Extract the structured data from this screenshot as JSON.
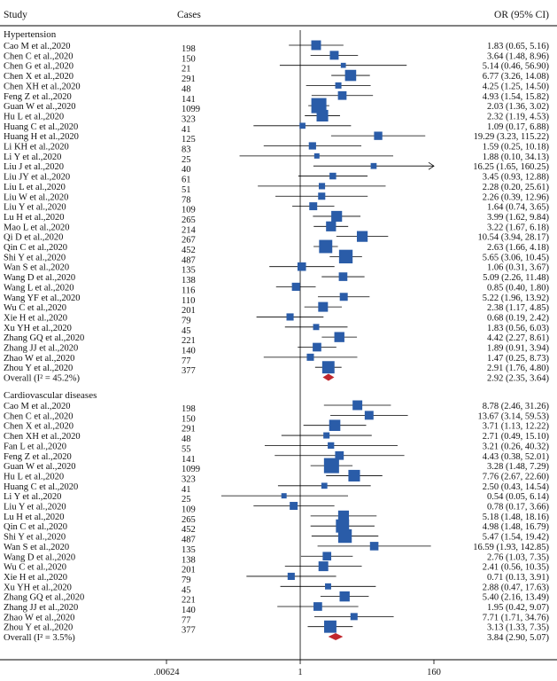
{
  "chart_data": {
    "type": "forest",
    "headers": {
      "study": "Study",
      "cases": "Cases",
      "or": "OR (95% CI)"
    },
    "axis": {
      "scale": "log",
      "range": [
        0.00624,
        160
      ],
      "null_value": 1,
      "ticks": [
        0.00624,
        1,
        160
      ],
      "tick_labels": [
        ".00624",
        "1",
        "160"
      ]
    },
    "groups": [
      {
        "name": "Hypertension",
        "studies": [
          {
            "label": "Cao M et al.,2020",
            "cases": "198",
            "or": 1.83,
            "lo": 0.65,
            "hi": 5.16,
            "ci": "1.83 (0.65, 5.16)"
          },
          {
            "label": "Chen C et al.,2020",
            "cases": "150",
            "or": 3.64,
            "lo": 1.48,
            "hi": 8.96,
            "ci": "3.64 (1.48, 8.96)"
          },
          {
            "label": "Chen G et al.,2020",
            "cases": "21",
            "or": 5.14,
            "lo": 0.46,
            "hi": 56.9,
            "ci": "5.14 (0.46, 56.90)"
          },
          {
            "label": "Chen X et al.,2020",
            "cases": "291",
            "or": 6.77,
            "lo": 3.26,
            "hi": 14.08,
            "ci": "6.77 (3.26, 14.08)"
          },
          {
            "label": "Chen XH et al.,2020",
            "cases": "48",
            "or": 4.25,
            "lo": 1.25,
            "hi": 14.5,
            "ci": "4.25 (1.25, 14.50)"
          },
          {
            "label": "Feng Z et al.,2020",
            "cases": "141",
            "or": 4.93,
            "lo": 1.54,
            "hi": 15.82,
            "ci": "4.93 (1.54, 15.82)"
          },
          {
            "label": "Guan W et al.,2020",
            "cases": "1099",
            "or": 2.03,
            "lo": 1.36,
            "hi": 3.02,
            "ci": "2.03 (1.36, 3.02)"
          },
          {
            "label": "Hu L et al.,2020",
            "cases": "323",
            "or": 2.32,
            "lo": 1.19,
            "hi": 4.53,
            "ci": "2.32 (1.19, 4.53)"
          },
          {
            "label": "Huang C et al.,2020",
            "cases": "41",
            "or": 1.09,
            "lo": 0.17,
            "hi": 6.88,
            "ci": "1.09 (0.17, 6.88)"
          },
          {
            "label": "Huang H et al.,2020",
            "cases": "125",
            "or": 19.29,
            "lo": 3.23,
            "hi": 115.22,
            "ci": "19.29 (3.23, 115.22)"
          },
          {
            "label": "Li KH et al.,2020",
            "cases": "83",
            "or": 1.59,
            "lo": 0.25,
            "hi": 10.18,
            "ci": "1.59 (0.25, 10.18)"
          },
          {
            "label": "Li Y et al.,2020",
            "cases": "25",
            "or": 1.88,
            "lo": 0.1,
            "hi": 34.13,
            "ci": "1.88 (0.10, 34.13)"
          },
          {
            "label": "Liu J et al.,2020",
            "cases": "40",
            "or": 16.25,
            "lo": 1.65,
            "hi": 160.25,
            "ci": "16.25 (1.65, 160.25)"
          },
          {
            "label": "Liu JY et al.,2020",
            "cases": "61",
            "or": 3.45,
            "or_note": "",
            "lo": 0.93,
            "hi": 12.88,
            "ci": "3.45 (0.93, 12.88)"
          },
          {
            "label": "Liu L et al.,2020",
            "cases": "51",
            "or": 2.28,
            "lo": 0.2,
            "hi": 25.61,
            "ci": "2.28 (0.20, 25.61)"
          },
          {
            "label": "Liu W et al.,2020",
            "cases": "78",
            "or": 2.26,
            "lo": 0.39,
            "hi": 12.96,
            "ci": "2.26 (0.39, 12.96)"
          },
          {
            "label": "Liu Y et al.,2020",
            "cases": "109",
            "or": 1.64,
            "lo": 0.74,
            "hi": 3.65,
            "ci": "1.64 (0.74, 3.65)"
          },
          {
            "label": "Lu H et al.,2020",
            "cases": "265",
            "or": 3.99,
            "lo": 1.62,
            "hi": 9.84,
            "ci": "3.99 (1.62, 9.84)"
          },
          {
            "label": "Mao L et al.,2020",
            "cases": "214",
            "or": 3.22,
            "lo": 1.67,
            "hi": 6.18,
            "ci": "3.22 (1.67, 6.18)"
          },
          {
            "label": "Qi D et al.,2020",
            "cases": "267",
            "or": 10.54,
            "lo": 3.94,
            "hi": 28.17,
            "ci": "10.54 (3.94, 28.17)"
          },
          {
            "label": "Qin C et al.,2020",
            "cases": "452",
            "or": 2.63,
            "lo": 1.66,
            "hi": 4.18,
            "ci": "2.63 (1.66, 4.18)"
          },
          {
            "label": "Shi Y et al.,2020",
            "cases": "487",
            "or": 5.65,
            "lo": 3.06,
            "hi": 10.45,
            "ci": "5.65 (3.06, 10.45)"
          },
          {
            "label": "Wan S et al.,2020",
            "cases": "135",
            "or": 1.06,
            "lo": 0.31,
            "hi": 3.67,
            "ci": "1.06 (0.31, 3.67)"
          },
          {
            "label": "Wang D et al.,2020",
            "cases": "138",
            "or": 5.09,
            "lo": 2.26,
            "hi": 11.48,
            "ci": "5.09 (2.26, 11.48)"
          },
          {
            "label": "Wang L et al.,2020",
            "cases": "116",
            "or": 0.85,
            "lo": 0.4,
            "hi": 1.8,
            "ci": "0.85 (0.40, 1.80)"
          },
          {
            "label": "Wang YF et al.,2020",
            "cases": "110",
            "or": 5.22,
            "lo": 1.96,
            "hi": 13.92,
            "ci": "5.22 (1.96, 13.92)"
          },
          {
            "label": "Wu C et al.,2020",
            "cases": "201",
            "or": 2.38,
            "lo": 1.17,
            "hi": 4.85,
            "ci": "2.38 (1.17, 4.85)"
          },
          {
            "label": "Xie H et al.,2020",
            "cases": "79",
            "or": 0.68,
            "lo": 0.19,
            "hi": 2.42,
            "ci": "0.68 (0.19, 2.42)"
          },
          {
            "label": "Xu YH et al.,2020",
            "cases": "45",
            "or": 1.83,
            "lo": 0.56,
            "hi": 6.03,
            "ci": "1.83 (0.56, 6.03)"
          },
          {
            "label": "Zhang GQ et al.,2020",
            "cases": "221",
            "or": 4.42,
            "lo": 2.27,
            "hi": 8.61,
            "ci": "4.42 (2.27, 8.61)"
          },
          {
            "label": "Zhang JJ et al.,2020",
            "cases": "140",
            "or": 1.89,
            "lo": 0.91,
            "hi": 3.94,
            "ci": "1.89 (0.91, 3.94)"
          },
          {
            "label": "Zhao W et al.,2020",
            "cases": "77",
            "or": 1.47,
            "lo": 0.25,
            "hi": 8.73,
            "ci": "1.47 (0.25, 8.73)"
          },
          {
            "label": "Zhou Y et al.,2020",
            "cases": "377",
            "or": 2.91,
            "lo": 1.76,
            "hi": 4.8,
            "ci": "2.91 (1.76, 4.80)"
          }
        ],
        "overall": {
          "label": "Overall (I² = 45.2%)",
          "or": 2.92,
          "lo": 2.35,
          "hi": 3.64,
          "ci": "2.92 (2.35, 3.64)"
        }
      },
      {
        "name": "Cardiovascular diseases",
        "studies": [
          {
            "label": "Cao M et al.,2020",
            "cases": "198",
            "or": 8.78,
            "lo": 2.46,
            "hi": 31.26,
            "ci": "8.78 (2.46, 31.26)"
          },
          {
            "label": "Chen C et al.,2020",
            "cases": "150",
            "or": 13.67,
            "lo": 3.14,
            "hi": 59.53,
            "ci": "13.67 (3.14, 59.53)"
          },
          {
            "label": "Chen X et al.,2020",
            "cases": "291",
            "or": 3.71,
            "lo": 1.13,
            "hi": 12.22,
            "ci": "3.71 (1.13, 12.22)"
          },
          {
            "label": "Chen XH et al.,2020",
            "cases": "48",
            "or": 2.71,
            "lo": 0.49,
            "hi": 15.1,
            "ci": "2.71 (0.49, 15.10)"
          },
          {
            "label": "Fan L et al.,2020",
            "cases": "55",
            "or": 3.21,
            "lo": 0.26,
            "hi": 40.32,
            "ci": "3.21 (0.26, 40.32)"
          },
          {
            "label": "Feng Z et al.,2020",
            "cases": "141",
            "or": 4.43,
            "lo": 0.38,
            "hi": 52.01,
            "ci": "4.43 (0.38, 52.01)"
          },
          {
            "label": "Guan W et al.,2020",
            "cases": "1099",
            "or": 3.28,
            "lo": 1.48,
            "hi": 7.29,
            "ci": "3.28 (1.48, 7.29)"
          },
          {
            "label": "Hu L et al.,2020",
            "cases": "323",
            "or": 7.76,
            "lo": 2.67,
            "hi": 22.6,
            "ci": "7.76 (2.67, 22.60)"
          },
          {
            "label": "Huang C et al.,2020",
            "cases": "41",
            "or": 2.5,
            "lo": 0.43,
            "hi": 14.54,
            "ci": "2.50 (0.43, 14.54)"
          },
          {
            "label": "Li Y et al.,2020",
            "cases": "25",
            "or": 0.54,
            "lo": 0.05,
            "hi": 6.14,
            "ci": "0.54 (0.05, 6.14)"
          },
          {
            "label": "Liu Y et al.,2020",
            "cases": "109",
            "or": 0.78,
            "lo": 0.17,
            "hi": 3.66,
            "ci": "0.78 (0.17, 3.66)"
          },
          {
            "label": "Lu H et al.,2020",
            "cases": "265",
            "or": 5.18,
            "lo": 1.48,
            "hi": 18.16,
            "ci": "5.18 (1.48, 18.16)"
          },
          {
            "label": "Qin C et al.,2020",
            "cases": "452",
            "or": 4.98,
            "lo": 1.48,
            "hi": 16.79,
            "ci": "4.98 (1.48, 16.79)"
          },
          {
            "label": "Shi Y et al.,2020",
            "cases": "487",
            "or": 5.47,
            "lo": 1.54,
            "hi": 19.42,
            "ci": "5.47 (1.54, 19.42)"
          },
          {
            "label": "Wan S et al.,2020",
            "cases": "135",
            "or": 16.59,
            "lo": 1.93,
            "hi": 142.85,
            "ci": "16.59 (1.93, 142.85)"
          },
          {
            "label": "Wang D et al.,2020",
            "cases": "138",
            "or": 2.76,
            "lo": 1.03,
            "hi": 7.35,
            "ci": "2.76 (1.03, 7.35)"
          },
          {
            "label": "Wu C et al.,2020",
            "cases": "201",
            "or": 2.41,
            "lo": 0.56,
            "hi": 10.35,
            "ci": "2.41 (0.56, 10.35)"
          },
          {
            "label": "Xie H et al.,2020",
            "cases": "79",
            "or": 0.71,
            "lo": 0.13,
            "hi": 3.91,
            "ci": "0.71 (0.13, 3.91)"
          },
          {
            "label": "Xu YH et al.,2020",
            "cases": "45",
            "or": 2.88,
            "lo": 0.47,
            "hi": 17.63,
            "ci": "2.88 (0.47, 17.63)"
          },
          {
            "label": "Zhang GQ et al.,2020",
            "cases": "221",
            "or": 5.4,
            "lo": 2.16,
            "hi": 13.49,
            "ci": "5.40 (2.16, 13.49)"
          },
          {
            "label": "Zhang JJ et al.,2020",
            "cases": "140",
            "or": 1.95,
            "lo": 0.42,
            "hi": 9.07,
            "ci": "1.95 (0.42, 9.07)"
          },
          {
            "label": "Zhao W et al.,2020",
            "cases": "77",
            "or": 7.71,
            "lo": 1.71,
            "hi": 34.76,
            "ci": "7.71 (1.71, 34.76)"
          },
          {
            "label": "Zhou Y et al.,2020",
            "cases": "377",
            "or": 3.13,
            "lo": 1.33,
            "hi": 7.35,
            "ci": "3.13 (1.33, 7.35)"
          }
        ],
        "overall": {
          "label": "Overall (I² = 3.5%)",
          "or": 3.84,
          "lo": 2.9,
          "hi": 5.07,
          "ci": "3.84 (2.90, 5.07)"
        }
      }
    ],
    "colors": {
      "box": "#2a5ca8",
      "diamond": "#c0272d",
      "line": "#000000"
    }
  }
}
